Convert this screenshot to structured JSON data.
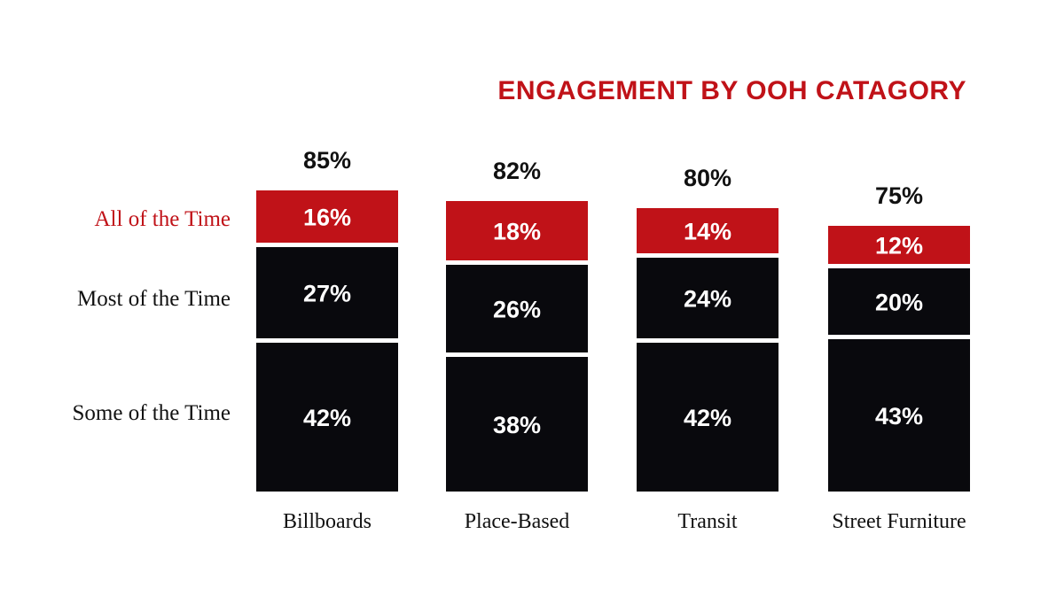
{
  "chart_data": {
    "type": "bar",
    "stacked": true,
    "title": "ENGAGEMENT BY OOH CATAGORY",
    "categories": [
      "Billboards",
      "Place-Based",
      "Transit",
      "Street Furniture"
    ],
    "totals": [
      "85%",
      "82%",
      "80%",
      "75%"
    ],
    "series": [
      {
        "name": "Some of the Time",
        "values": [
          42,
          38,
          42,
          43
        ],
        "labels": [
          "42%",
          "38%",
          "42%",
          "43%"
        ],
        "color": "#09090d"
      },
      {
        "name": "Most of the Time",
        "values": [
          27,
          26,
          24,
          20
        ],
        "labels": [
          "27%",
          "26%",
          "24%",
          "20%"
        ],
        "color": "#09090d"
      },
      {
        "name": "All of the Time",
        "values": [
          16,
          18,
          14,
          12
        ],
        "labels": [
          "16%",
          "18%",
          "14%",
          "12%"
        ],
        "color": "#c01218"
      }
    ],
    "legend_placement": "left",
    "grid": false
  }
}
